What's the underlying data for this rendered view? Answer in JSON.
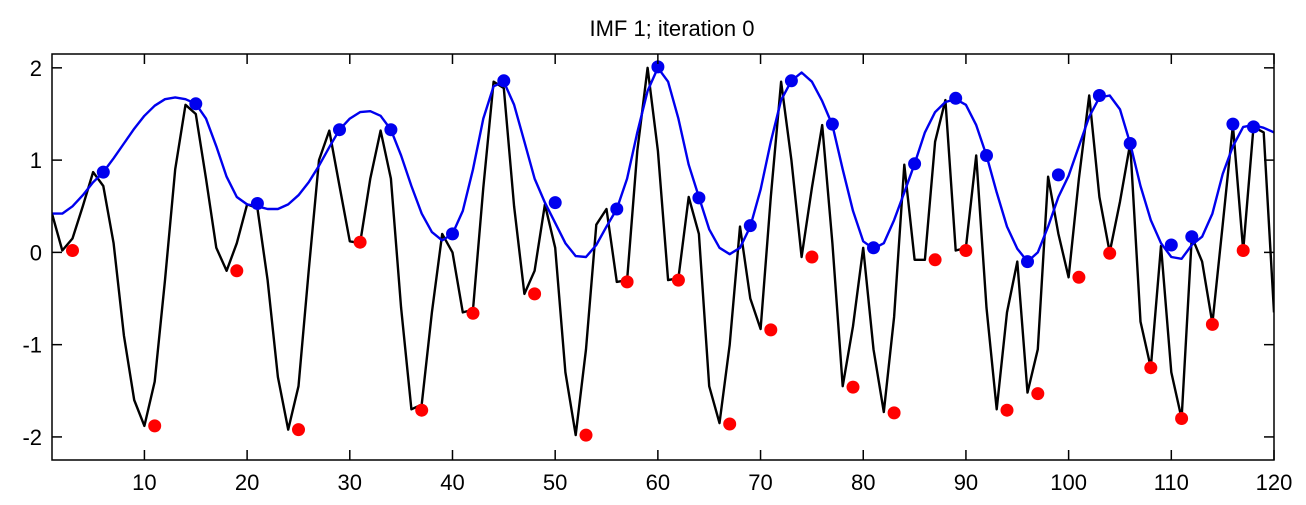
{
  "chart_data": {
    "type": "line",
    "title": "IMF 1;   iteration 0",
    "xlabel": "",
    "ylabel": "",
    "xlim": [
      1,
      120
    ],
    "ylim": [
      -2.25,
      2.15
    ],
    "xticks": [
      10,
      20,
      30,
      40,
      50,
      60,
      70,
      80,
      90,
      100,
      110,
      120
    ],
    "yticks": [
      2,
      1,
      0,
      -1,
      -2
    ],
    "grid": false,
    "legend": "none",
    "colors": {
      "signal": "#000000",
      "upper_envelope": "#0000ee",
      "maxima": "#0000ee",
      "minima": "#ff0000"
    },
    "series": [
      {
        "kind": "line",
        "role": "signal",
        "x": [
          1,
          2,
          3,
          4,
          5,
          6,
          7,
          8,
          9,
          10,
          11,
          12,
          13,
          14,
          15,
          16,
          17,
          18,
          19,
          20,
          21,
          22,
          23,
          24,
          25,
          26,
          27,
          28,
          29,
          30,
          31,
          32,
          33,
          34,
          35,
          36,
          37,
          38,
          39,
          40,
          41,
          42,
          43,
          44,
          45,
          46,
          47,
          48,
          49,
          50,
          51,
          52,
          53,
          54,
          55,
          56,
          57,
          58,
          59,
          60,
          61,
          62,
          63,
          64,
          65,
          66,
          67,
          68,
          69,
          70,
          71,
          72,
          73,
          74,
          75,
          76,
          77,
          78,
          79,
          80,
          81,
          82,
          83,
          84,
          85,
          86,
          87,
          88,
          89,
          90,
          91,
          92,
          93,
          94,
          95,
          96,
          97,
          98,
          99,
          100,
          101,
          102,
          103,
          104,
          105,
          106,
          107,
          108,
          109,
          110,
          111,
          112,
          113,
          114,
          115,
          116,
          117,
          118,
          119,
          120
        ],
        "y": [
          0.42,
          0.02,
          0.15,
          0.5,
          0.87,
          0.72,
          0.1,
          -0.9,
          -1.6,
          -1.88,
          -1.4,
          -0.3,
          0.9,
          1.6,
          1.5,
          0.8,
          0.05,
          -0.2,
          0.1,
          0.52,
          0.48,
          -0.3,
          -1.35,
          -1.92,
          -1.45,
          -0.2,
          1.0,
          1.32,
          0.72,
          0.12,
          0.1,
          0.8,
          1.32,
          0.8,
          -0.6,
          -1.7,
          -1.65,
          -0.65,
          0.2,
          0.0,
          -0.65,
          -0.62,
          0.7,
          1.85,
          1.78,
          0.5,
          -0.45,
          -0.2,
          0.52,
          0.05,
          -1.3,
          -1.98,
          -1.05,
          0.3,
          0.47,
          -0.32,
          -0.3,
          1.1,
          2.0,
          1.1,
          -0.3,
          -0.28,
          0.6,
          0.2,
          -1.45,
          -1.85,
          -1.0,
          0.28,
          -0.5,
          -0.83,
          0.6,
          1.85,
          1.0,
          -0.05,
          0.7,
          1.38,
          0.1,
          -1.45,
          -0.8,
          0.05,
          -1.05,
          -1.73,
          -0.7,
          0.95,
          -0.08,
          -0.08,
          1.2,
          1.65,
          0.02,
          0.05,
          1.05,
          -0.6,
          -1.7,
          -0.65,
          -0.1,
          -1.52,
          -1.05,
          0.82,
          0.2,
          -0.27,
          0.8,
          1.7,
          0.6,
          0.0,
          0.55,
          1.18,
          -0.75,
          -1.25,
          0.07,
          -1.3,
          -1.8,
          0.17,
          -0.1,
          -0.77,
          0.3,
          1.38,
          0.02,
          1.36,
          1.3,
          -0.65
        ]
      },
      {
        "kind": "line",
        "role": "upper_envelope",
        "x": [
          1,
          2,
          3,
          4,
          5,
          6,
          7,
          8,
          9,
          10,
          11,
          12,
          13,
          14,
          15,
          16,
          17,
          18,
          19,
          20,
          21,
          22,
          23,
          24,
          25,
          26,
          27,
          28,
          29,
          30,
          31,
          32,
          33,
          34,
          35,
          36,
          37,
          38,
          39,
          40,
          41,
          42,
          43,
          44,
          45,
          46,
          47,
          48,
          49,
          50,
          51,
          52,
          53,
          54,
          55,
          56,
          57,
          58,
          59,
          60,
          61,
          62,
          63,
          64,
          65,
          66,
          67,
          68,
          69,
          70,
          71,
          72,
          73,
          74,
          75,
          76,
          77,
          78,
          79,
          80,
          81,
          82,
          83,
          84,
          85,
          86,
          87,
          88,
          89,
          90,
          91,
          92,
          93,
          94,
          95,
          96,
          97,
          98,
          99,
          100,
          101,
          102,
          103,
          104,
          105,
          106,
          107,
          108,
          109,
          110,
          111,
          112,
          113,
          114,
          115,
          116,
          117,
          118,
          119,
          120
        ],
        "y": [
          0.42,
          0.42,
          0.5,
          0.62,
          0.76,
          0.87,
          1.02,
          1.18,
          1.34,
          1.48,
          1.59,
          1.66,
          1.68,
          1.66,
          1.61,
          1.45,
          1.15,
          0.82,
          0.6,
          0.52,
          0.5,
          0.47,
          0.47,
          0.52,
          0.62,
          0.76,
          0.94,
          1.14,
          1.33,
          1.45,
          1.52,
          1.53,
          1.48,
          1.33,
          1.05,
          0.72,
          0.42,
          0.22,
          0.13,
          0.2,
          0.45,
          0.9,
          1.45,
          1.8,
          1.85,
          1.6,
          1.2,
          0.8,
          0.54,
          0.32,
          0.1,
          -0.04,
          -0.05,
          0.08,
          0.28,
          0.47,
          0.8,
          1.3,
          1.75,
          2.0,
          1.85,
          1.45,
          0.95,
          0.6,
          0.25,
          0.05,
          -0.02,
          0.05,
          0.28,
          0.68,
          1.2,
          1.65,
          1.86,
          1.95,
          1.85,
          1.64,
          1.38,
          0.9,
          0.45,
          0.12,
          0.04,
          0.1,
          0.35,
          0.65,
          0.96,
          1.3,
          1.52,
          1.63,
          1.66,
          1.6,
          1.38,
          1.05,
          0.65,
          0.28,
          0.04,
          -0.1,
          0.0,
          0.28,
          0.6,
          0.83,
          1.15,
          1.47,
          1.68,
          1.7,
          1.55,
          1.18,
          0.72,
          0.35,
          0.1,
          -0.05,
          -0.07,
          0.08,
          0.17,
          0.42,
          0.85,
          1.15,
          1.36,
          1.38,
          1.35,
          1.3
        ]
      },
      {
        "kind": "markers",
        "role": "maxima",
        "x": [
          6,
          15,
          21,
          29,
          34,
          40,
          45,
          50,
          56,
          60,
          64,
          69,
          73,
          77,
          81,
          85,
          89,
          92,
          96,
          99,
          103,
          106,
          110,
          112,
          116,
          118
        ],
        "y": [
          0.87,
          1.61,
          0.53,
          1.33,
          1.33,
          0.2,
          1.86,
          0.54,
          0.47,
          2.01,
          0.59,
          0.29,
          1.86,
          1.39,
          0.05,
          0.96,
          1.67,
          1.05,
          -0.1,
          0.84,
          1.7,
          1.18,
          0.08,
          0.17,
          1.39,
          1.36
        ]
      },
      {
        "kind": "markers",
        "role": "minima",
        "x": [
          3,
          11,
          19,
          25,
          31,
          37,
          42,
          48,
          53,
          57,
          62,
          67,
          71,
          75,
          79,
          83,
          87,
          90,
          94,
          97,
          101,
          104,
          108,
          111,
          114,
          117
        ],
        "y": [
          0.02,
          -1.88,
          -0.2,
          -1.92,
          0.11,
          -1.71,
          -0.66,
          -0.45,
          -1.98,
          -0.32,
          -0.3,
          -1.86,
          -0.84,
          -0.05,
          -1.46,
          -1.74,
          -0.08,
          0.02,
          -1.71,
          -1.53,
          -0.27,
          -0.01,
          -1.25,
          -1.8,
          -0.78,
          0.02
        ]
      }
    ]
  }
}
